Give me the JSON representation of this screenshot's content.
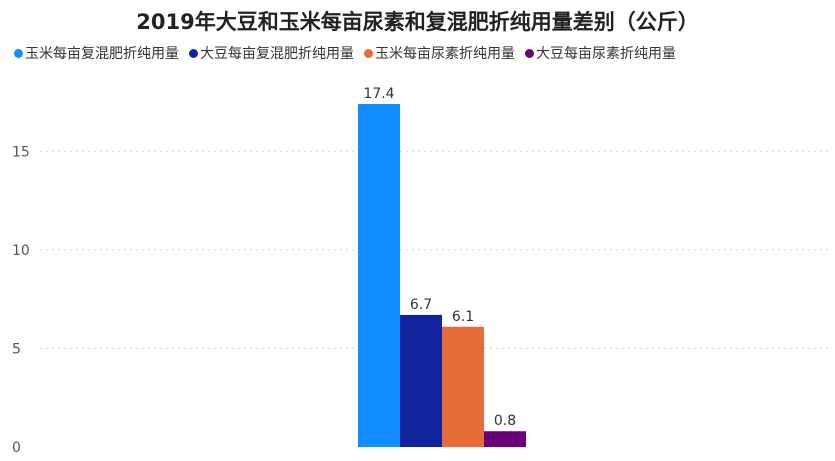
{
  "chart_data": {
    "type": "bar",
    "title": "2019年大豆和玉米每亩尿素和复混肥折纯用量差别（公斤）",
    "xlabel": "",
    "ylabel": "",
    "ylim": [
      0,
      17.4
    ],
    "yticks": [
      0,
      5,
      10,
      15
    ],
    "grid": true,
    "legend_position": "top-left",
    "series": [
      {
        "name": "玉米每亩复混肥折纯用量",
        "value": 17.4,
        "label": "17.4",
        "color": "#118dff"
      },
      {
        "name": "大豆每亩复混肥折纯用量",
        "value": 6.7,
        "label": "6.7",
        "color": "#12239e"
      },
      {
        "name": "玉米每亩尿素折纯用量",
        "value": 6.1,
        "label": "6.1",
        "color": "#e66c37"
      },
      {
        "name": "大豆每亩尿素折纯用量",
        "value": 0.8,
        "label": "0.8",
        "color": "#6b007b"
      }
    ]
  }
}
